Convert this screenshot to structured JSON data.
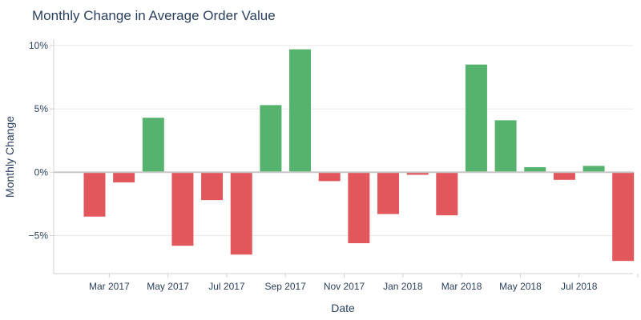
{
  "chart_data": {
    "type": "bar",
    "title": "Monthly Change in Average Order Value",
    "xlabel": "Date",
    "ylabel": "Monthly Change",
    "ylim": [
      -8,
      10.5
    ],
    "yticks": [
      {
        "value": -5,
        "label": "−5%"
      },
      {
        "value": 0,
        "label": "0%"
      },
      {
        "value": 5,
        "label": "5%"
      },
      {
        "value": 10,
        "label": "10%"
      }
    ],
    "categories": [
      "2017-02",
      "2017-03",
      "2017-04",
      "2017-05",
      "2017-06",
      "2017-07",
      "2017-08",
      "2017-09",
      "2017-10",
      "2017-11",
      "2017-12",
      "2018-01",
      "2018-02",
      "2018-03",
      "2018-04",
      "2018-05",
      "2018-06",
      "2018-07",
      "2018-08",
      "2018-09"
    ],
    "values": [
      -3.5,
      -0.8,
      4.3,
      -5.8,
      -2.2,
      -6.5,
      5.3,
      9.7,
      -0.7,
      -5.6,
      -3.3,
      -0.2,
      -3.4,
      8.5,
      4.1,
      0.4,
      -0.6,
      0.5,
      -7.0,
      null
    ],
    "xtick_labels": [
      "Mar 2017",
      "May 2017",
      "Jul 2017",
      "Sep 2017",
      "Nov 2017",
      "Jan 2018",
      "Mar 2018",
      "May 2018",
      "Jul 2018"
    ],
    "xtick_positions": [
      0.5,
      2.5,
      4.5,
      6.5,
      8.5,
      10.5,
      12.5,
      14.5,
      16.5
    ],
    "colors": {
      "positive": "#56b36d",
      "negative": "#e2575b"
    }
  }
}
